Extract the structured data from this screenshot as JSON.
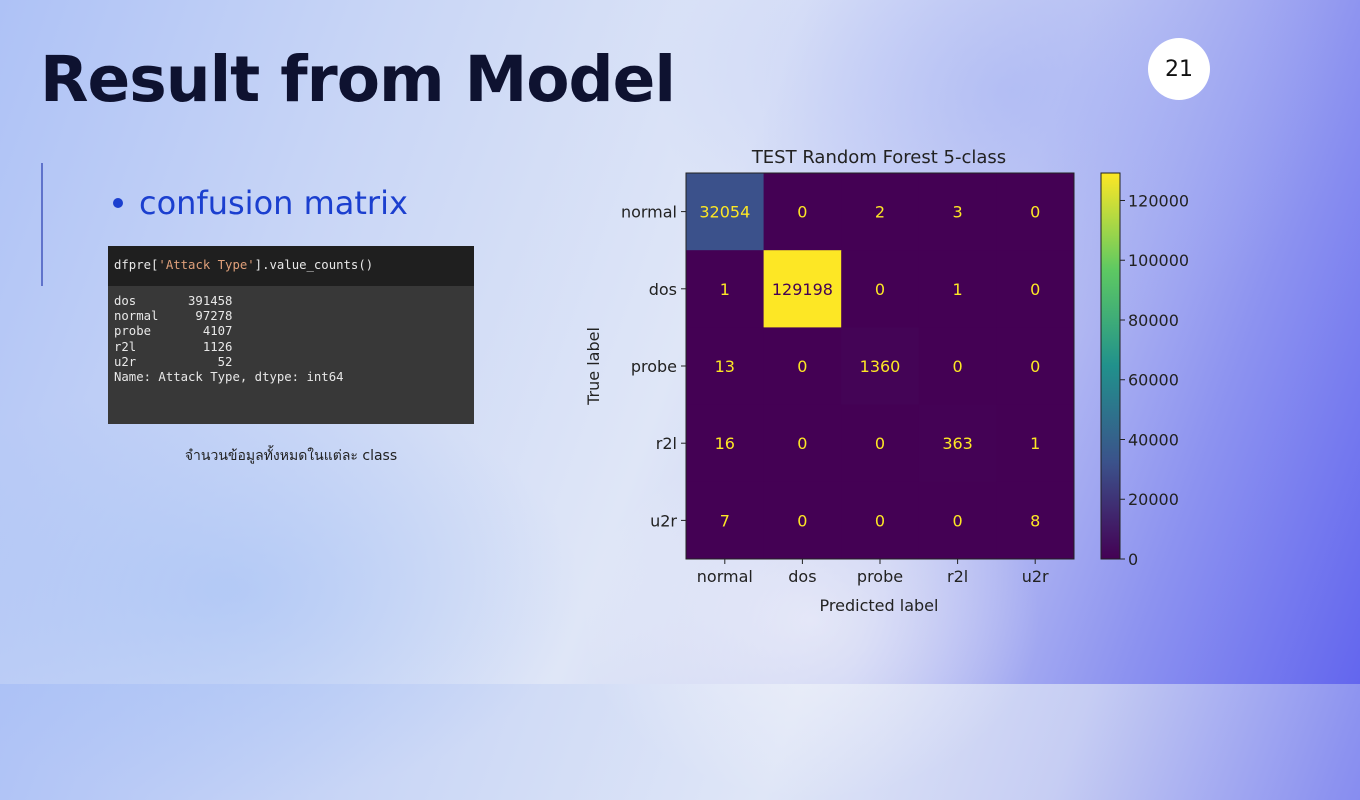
{
  "slide": {
    "title": "Result from Model",
    "page_number": "21",
    "bullet": "confusion matrix",
    "caption": "จำนวนข้อมูลทั้งหมดในแต่ละ class"
  },
  "code": {
    "input_prefix": "dfpre[",
    "input_string": "'Attack Type'",
    "input_suffix": "].value_counts()",
    "output": "dos       391458\nnormal     97278\nprobe       4107\nr2l         1126\nu2r           52\nName: Attack Type, dtype: int64"
  },
  "chart_data": {
    "type": "heatmap",
    "title": "TEST Random Forest 5-class",
    "xlabel": "Predicted label",
    "ylabel": "True label",
    "x_categories": [
      "normal",
      "dos",
      "probe",
      "r2l",
      "u2r"
    ],
    "y_categories": [
      "normal",
      "dos",
      "probe",
      "r2l",
      "u2r"
    ],
    "values": [
      [
        32054,
        0,
        2,
        3,
        0
      ],
      [
        1,
        129198,
        0,
        1,
        0
      ],
      [
        13,
        0,
        1360,
        0,
        0
      ],
      [
        16,
        0,
        0,
        363,
        1
      ],
      [
        7,
        0,
        0,
        0,
        8
      ]
    ],
    "colorbar_ticks": [
      0,
      20000,
      40000,
      60000,
      80000,
      100000,
      120000
    ],
    "colorbar_range": [
      0,
      129198
    ],
    "colormap": "viridis",
    "cell_text_colors": {
      "light": "#fde725",
      "dark": "#440154"
    }
  }
}
